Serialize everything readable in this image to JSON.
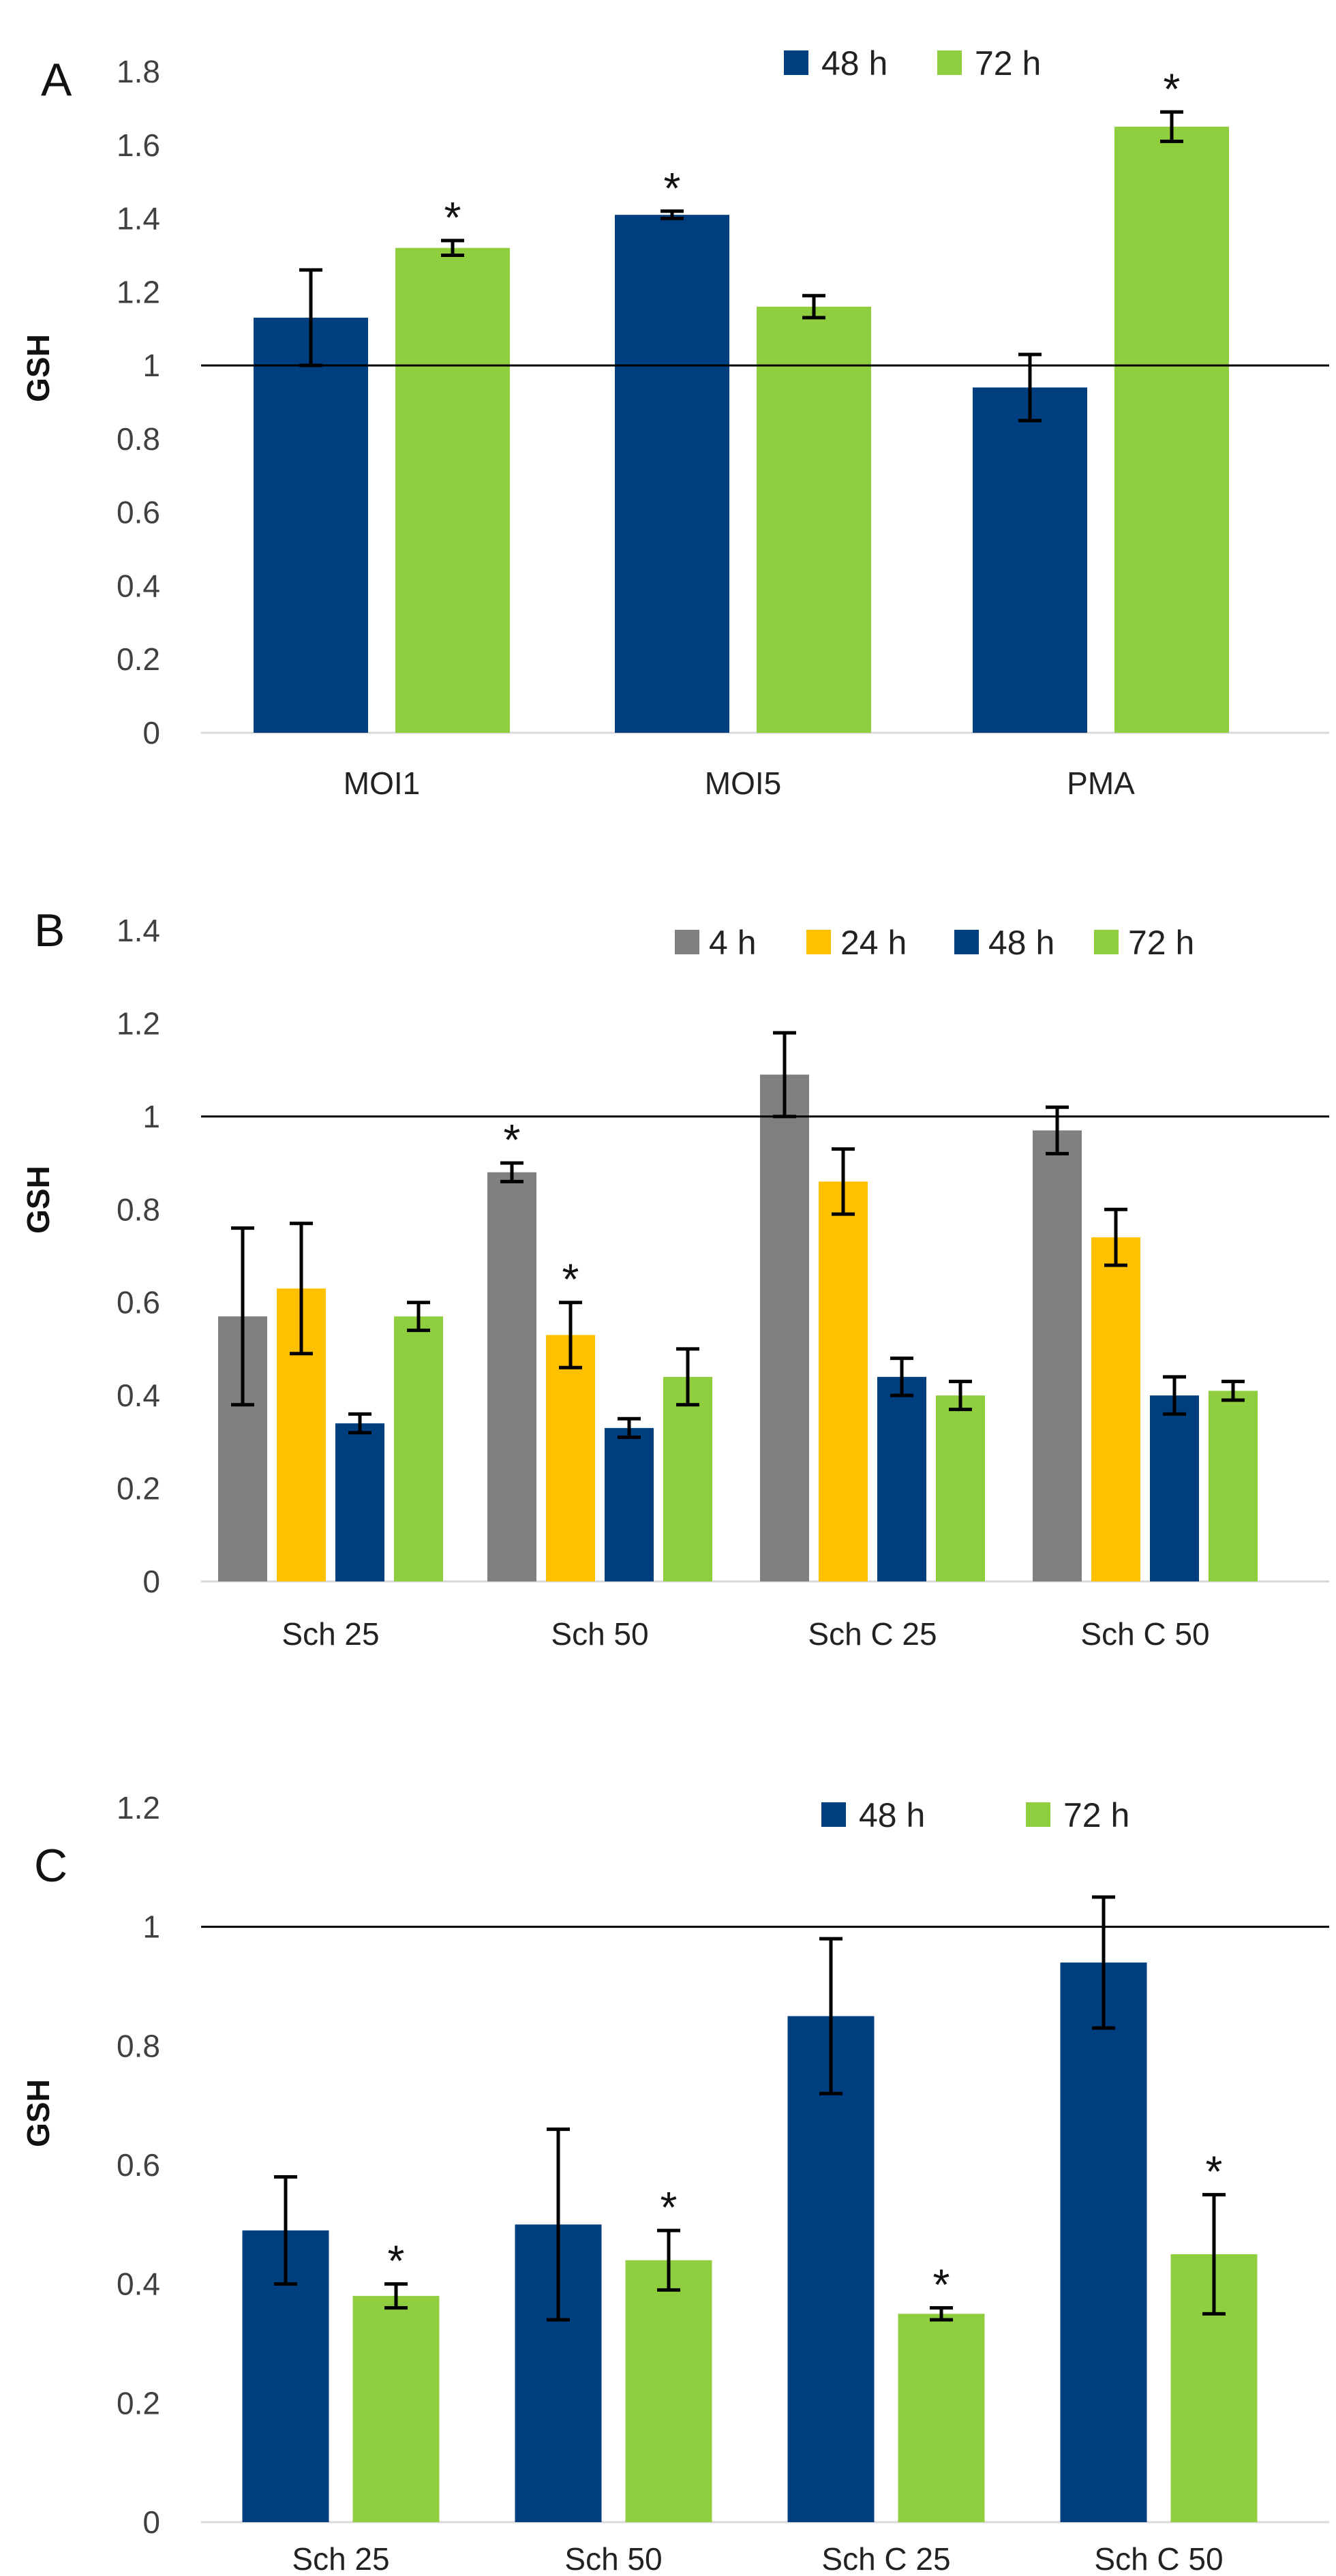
{
  "colors": {
    "4 h": "#808080",
    "24 h": "#FFC000",
    "48 h": "#003F7F",
    "72 h": "#8FCF3F"
  },
  "chart_data": [
    {
      "panel": "A",
      "type": "bar",
      "ylabel": "GSH",
      "ylim": [
        0,
        1.8
      ],
      "yticks": [
        0,
        0.2,
        0.4,
        0.6,
        0.8,
        1,
        1.2,
        1.4,
        1.6,
        1.8
      ],
      "reference_line": 1,
      "legend": [
        "48 h",
        "72 h"
      ],
      "categories": [
        "MOI1",
        "MOI5",
        "PMA"
      ],
      "series": [
        {
          "name": "48 h",
          "values": [
            1.13,
            1.41,
            0.94
          ],
          "errors": [
            0.13,
            0.01,
            0.09
          ],
          "significant": [
            false,
            true,
            false
          ]
        },
        {
          "name": "72 h",
          "values": [
            1.32,
            1.16,
            1.65
          ],
          "errors": [
            0.02,
            0.03,
            0.04
          ],
          "significant": [
            true,
            false,
            true
          ]
        }
      ]
    },
    {
      "panel": "B",
      "type": "bar",
      "ylabel": "GSH",
      "ylim": [
        0,
        1.4
      ],
      "yticks": [
        0,
        0.2,
        0.4,
        0.6,
        0.8,
        1,
        1.2,
        1.4
      ],
      "reference_line": 1,
      "legend": [
        "4 h",
        "24 h",
        "48 h",
        "72 h"
      ],
      "categories": [
        "Sch 25",
        "Sch 50",
        "Sch C 25",
        "Sch C 50"
      ],
      "series": [
        {
          "name": "4 h",
          "values": [
            0.57,
            0.88,
            1.09,
            0.97
          ],
          "errors": [
            0.19,
            0.02,
            0.09,
            0.05
          ],
          "significant": [
            false,
            true,
            false,
            false
          ]
        },
        {
          "name": "24 h",
          "values": [
            0.63,
            0.53,
            0.86,
            0.74
          ],
          "errors": [
            0.14,
            0.07,
            0.07,
            0.06
          ],
          "significant": [
            false,
            true,
            false,
            false
          ]
        },
        {
          "name": "48 h",
          "values": [
            0.34,
            0.33,
            0.44,
            0.4
          ],
          "errors": [
            0.02,
            0.02,
            0.04,
            0.04
          ],
          "significant": [
            false,
            false,
            false,
            false
          ]
        },
        {
          "name": "72 h",
          "values": [
            0.57,
            0.44,
            0.4,
            0.41
          ],
          "errors": [
            0.03,
            0.06,
            0.03,
            0.02
          ],
          "significant": [
            false,
            false,
            false,
            false
          ]
        }
      ]
    },
    {
      "panel": "C",
      "type": "bar",
      "ylabel": "GSH",
      "ylim": [
        0,
        1.2
      ],
      "yticks": [
        0,
        0.2,
        0.4,
        0.6,
        0.8,
        1,
        1.2
      ],
      "reference_line": 1,
      "legend": [
        "48 h",
        "72 h"
      ],
      "categories": [
        "Sch 25",
        "Sch 50",
        "Sch C 25",
        "Sch C 50"
      ],
      "series": [
        {
          "name": "48 h",
          "values": [
            0.49,
            0.5,
            0.85,
            0.94
          ],
          "errors": [
            0.09,
            0.16,
            0.13,
            0.11
          ],
          "significant": [
            false,
            false,
            false,
            false
          ]
        },
        {
          "name": "72 h",
          "values": [
            0.38,
            0.44,
            0.35,
            0.45
          ],
          "errors": [
            0.02,
            0.05,
            0.01,
            0.1
          ],
          "significant": [
            true,
            true,
            true,
            true
          ]
        }
      ]
    }
  ]
}
